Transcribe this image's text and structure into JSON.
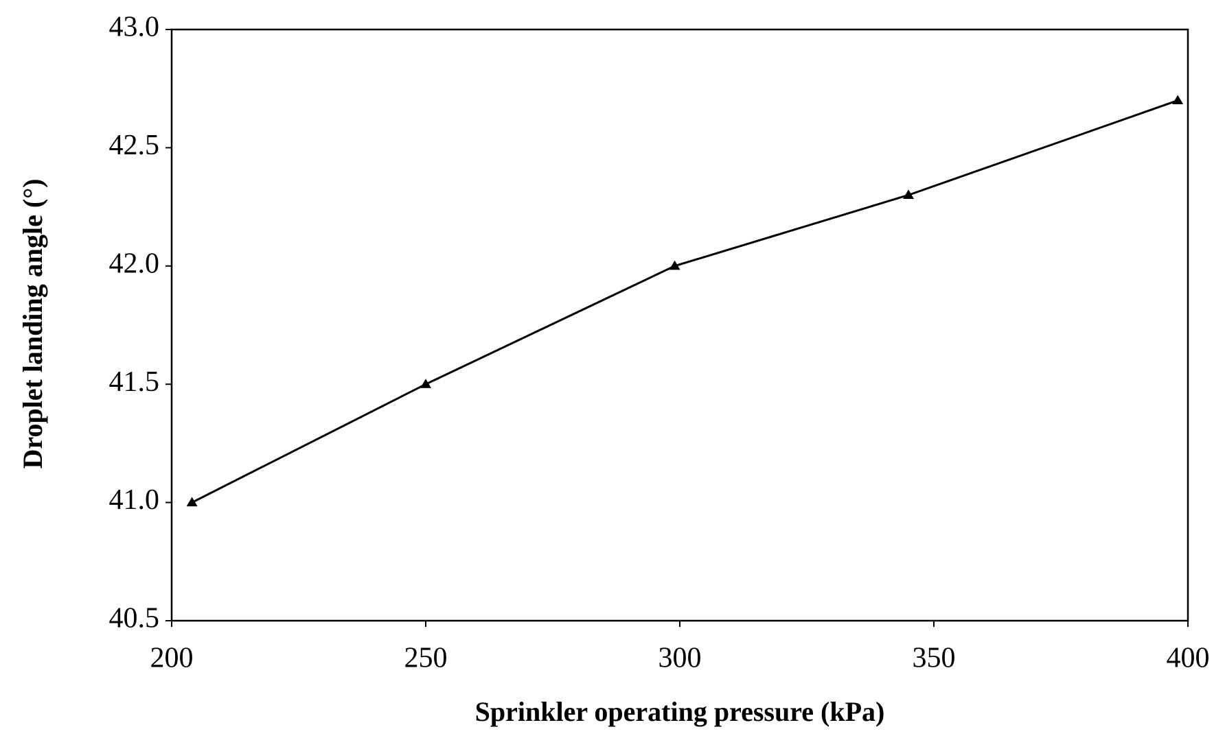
{
  "chart_data": {
    "type": "line",
    "x_label": "Sprinkler operating pressure (kPa)",
    "y_label": "Droplet landing angle (°)",
    "series": [
      {
        "color": "#000000",
        "x": [
          204,
          250,
          299,
          345,
          398
        ],
        "values": [
          41.0,
          41.5,
          42.0,
          42.3,
          42.7
        ]
      }
    ],
    "xlim": [
      200,
      400
    ],
    "xticks": [
      200,
      250,
      300,
      350,
      400
    ],
    "ylim": [
      40.5,
      43.0
    ],
    "yticks": [
      40.5,
      {
        "value": 41.0,
        "label": "41.0"
      },
      41.5,
      {
        "value": 42.0,
        "label": "42.0"
      },
      42.5,
      {
        "value": 43.0,
        "label": "43.0"
      }
    ],
    "grid": false
  }
}
